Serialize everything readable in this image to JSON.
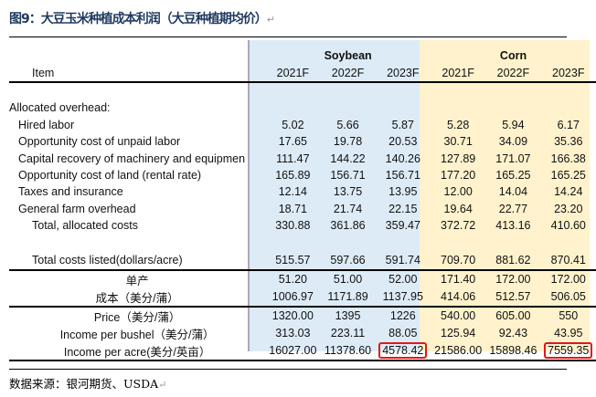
{
  "title": "图9：大豆玉米种植成本利润（大豆种植期均价）",
  "return_mark": "↵",
  "groups": {
    "soybean": "Soybean",
    "corn": "Corn"
  },
  "header": {
    "item": "Item",
    "years": [
      "2021F",
      "2022F",
      "2023F",
      "2021F",
      "2022F",
      "2023F"
    ]
  },
  "section_label": "Allocated overhead:",
  "rows": [
    {
      "label": "Hired labor",
      "v": [
        "5.02",
        "5.66",
        "5.87",
        "5.28",
        "5.94",
        "6.17"
      ]
    },
    {
      "label": "Opportunity cost of unpaid labor",
      "v": [
        "17.65",
        "19.78",
        "20.53",
        "30.71",
        "34.09",
        "35.36"
      ]
    },
    {
      "label": "Capital recovery of machinery and equipmen",
      "v": [
        "111.47",
        "144.22",
        "140.26",
        "127.89",
        "171.07",
        "166.38"
      ]
    },
    {
      "label": "Opportunity cost of land (rental rate)",
      "v": [
        "165.89",
        "156.71",
        "156.71",
        "177.20",
        "165.25",
        "165.25"
      ]
    },
    {
      "label": "Taxes and insurance",
      "v": [
        "12.14",
        "13.75",
        "13.95",
        "12.00",
        "14.04",
        "14.24"
      ]
    },
    {
      "label": "General farm overhead",
      "v": [
        "18.71",
        "21.74",
        "22.15",
        "19.64",
        "22.77",
        "23.20"
      ]
    },
    {
      "label": "Total, allocated costs",
      "v": [
        "330.88",
        "361.86",
        "359.47",
        "372.72",
        "413.16",
        "410.60"
      ]
    }
  ],
  "total": {
    "label": "Total costs listed(dollars/acre)",
    "v": [
      "515.57",
      "597.66",
      "591.74",
      "709.70",
      "881.62",
      "870.41"
    ]
  },
  "yield": {
    "label": "单产",
    "v": [
      "51.20",
      "51.00",
      "52.00",
      "171.40",
      "172.00",
      "172.00"
    ]
  },
  "cost": {
    "label": "成本（美分/蒲）",
    "v": [
      "1006.97",
      "1171.89",
      "1137.95",
      "414.06",
      "512.57",
      "506.05"
    ]
  },
  "price": {
    "label": "Price（美分/蒲）",
    "v": [
      "1320.00",
      "1395",
      "1226",
      "540.00",
      "605.00",
      "550"
    ]
  },
  "income_bushel": {
    "label": "Income per bushel（美分/蒲）",
    "v": [
      "313.03",
      "223.11",
      "88.05",
      "125.94",
      "92.43",
      "43.95"
    ]
  },
  "income_acre": {
    "label": "Income per acre(美分/英亩）",
    "v": [
      "16027.00",
      "11378.60",
      "4578.42",
      "21586.00",
      "15898.46",
      "7559.35"
    ]
  },
  "source": "数据来源：银河期货、USDA",
  "colors": {
    "soy_bg": "#ddebf7",
    "corn_bg": "#fff2cc",
    "highlight": "#e0191b"
  }
}
